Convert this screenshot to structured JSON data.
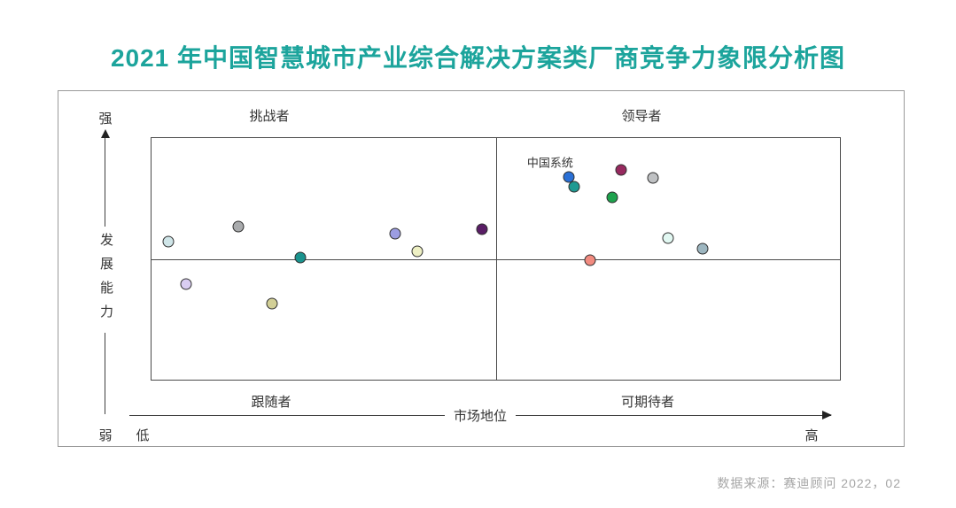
{
  "page": {
    "title": "2021 年中国智慧城市产业综合解决方案类厂商竞争力象限分析图",
    "source_note": "数据来源：赛迪顾问  2022，02"
  },
  "colors": {
    "title": "#1ca49c",
    "axis_line": "#3f3f3f",
    "panel_border": "#9a9a9a",
    "dot_border": "#303030",
    "source_text": "#a6a6a6"
  },
  "quadrants": {
    "top_left": "挑战者",
    "top_right": "领导者",
    "bottom_left": "跟随者",
    "bottom_right": "可期待者"
  },
  "y_axis": {
    "label": "发展能力",
    "max": "强",
    "min": "弱"
  },
  "x_axis": {
    "label": "市场地位",
    "min": "低",
    "max": "高"
  },
  "chart_data": {
    "type": "scatter",
    "title": "2021 年中国智慧城市产业综合解决方案类厂商竞争力象限分析图",
    "xlabel": "市场地位",
    "ylabel": "发展能力",
    "x_range_labels": [
      "低",
      "高"
    ],
    "y_range_labels": [
      "弱",
      "强"
    ],
    "axis_scale": "normalized 0-100 (read from quadrant positions, no numeric ticks shown)",
    "quadrant_divider": {
      "x": 50,
      "y": 50
    },
    "quadrant_names": [
      "挑战者",
      "领导者",
      "跟随者",
      "可期待者"
    ],
    "points": [
      {
        "x": 2.4,
        "y": 57.1,
        "color": "#cfe5e8"
      },
      {
        "x": 12.6,
        "y": 63.3,
        "color": "#a9abad"
      },
      {
        "x": 21.6,
        "y": 50.5,
        "color": "#1a938e"
      },
      {
        "x": 5.0,
        "y": 39.6,
        "color": "#d9cdf2"
      },
      {
        "x": 17.5,
        "y": 31.6,
        "color": "#d2cf96"
      },
      {
        "x": 35.4,
        "y": 60.4,
        "color": "#9c9de2"
      },
      {
        "x": 38.6,
        "y": 53.1,
        "color": "#eef0c4"
      },
      {
        "x": 48.0,
        "y": 62.2,
        "color": "#5a1e66"
      },
      {
        "x": 60.6,
        "y": 84.0,
        "color": "#2a70d6",
        "label": "中国系统"
      },
      {
        "x": 61.4,
        "y": 80.0,
        "color": "#1f9a92"
      },
      {
        "x": 68.2,
        "y": 86.9,
        "color": "#97295f"
      },
      {
        "x": 72.9,
        "y": 83.6,
        "color": "#bfc1c3"
      },
      {
        "x": 66.9,
        "y": 75.6,
        "color": "#1ea24d"
      },
      {
        "x": 75.0,
        "y": 58.5,
        "color": "#e2f8f2"
      },
      {
        "x": 80.0,
        "y": 54.2,
        "color": "#9db6c0"
      },
      {
        "x": 63.7,
        "y": 49.5,
        "color": "#f28b80"
      }
    ]
  }
}
